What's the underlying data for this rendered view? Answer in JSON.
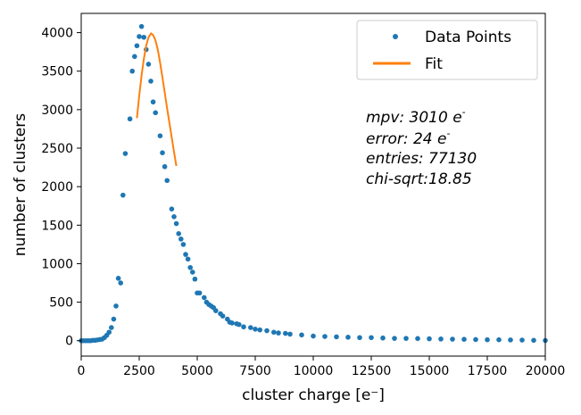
{
  "chart_data": {
    "type": "scatter",
    "title": "",
    "xlabel": "cluster charge [e⁻]",
    "ylabel": "number of clusters",
    "xlim": [
      0,
      20000
    ],
    "ylim": [
      -200,
      4250
    ],
    "x_ticks": [
      0,
      2500,
      5000,
      7500,
      10000,
      12500,
      15000,
      17500,
      20000
    ],
    "y_ticks": [
      0,
      500,
      1000,
      1500,
      2000,
      2500,
      3000,
      3500,
      4000
    ],
    "grid": false,
    "legend_position": "top-right",
    "series": [
      {
        "name": "Data Points",
        "kind": "scatter",
        "color": "#1f77b4",
        "points": [
          [
            0,
            0
          ],
          [
            100,
            0
          ],
          [
            200,
            0
          ],
          [
            300,
            0
          ],
          [
            400,
            0
          ],
          [
            500,
            5
          ],
          [
            600,
            5
          ],
          [
            700,
            10
          ],
          [
            800,
            15
          ],
          [
            900,
            20
          ],
          [
            1000,
            40
          ],
          [
            1100,
            70
          ],
          [
            1200,
            110
          ],
          [
            1300,
            170
          ],
          [
            1400,
            280
          ],
          [
            1500,
            450
          ],
          [
            1600,
            810
          ],
          [
            1700,
            750
          ],
          [
            1800,
            1890
          ],
          [
            1900,
            2430
          ],
          [
            2100,
            2880
          ],
          [
            2200,
            3500
          ],
          [
            2300,
            3690
          ],
          [
            2400,
            3830
          ],
          [
            2500,
            3950
          ],
          [
            2600,
            4080
          ],
          [
            2700,
            3940
          ],
          [
            2800,
            3780
          ],
          [
            2900,
            3590
          ],
          [
            3000,
            3370
          ],
          [
            3100,
            3100
          ],
          [
            3200,
            2960
          ],
          [
            3400,
            2660
          ],
          [
            3500,
            2440
          ],
          [
            3600,
            2260
          ],
          [
            3700,
            2080
          ],
          [
            3900,
            1710
          ],
          [
            4000,
            1610
          ],
          [
            4100,
            1520
          ],
          [
            4200,
            1390
          ],
          [
            4300,
            1320
          ],
          [
            4400,
            1250
          ],
          [
            4500,
            1120
          ],
          [
            4600,
            1060
          ],
          [
            4700,
            950
          ],
          [
            4800,
            890
          ],
          [
            4900,
            800
          ],
          [
            5000,
            620
          ],
          [
            5100,
            620
          ],
          [
            5300,
            560
          ],
          [
            5400,
            500
          ],
          [
            5500,
            470
          ],
          [
            5600,
            450
          ],
          [
            5700,
            430
          ],
          [
            5800,
            390
          ],
          [
            6000,
            350
          ],
          [
            6100,
            320
          ],
          [
            6300,
            280
          ],
          [
            6400,
            240
          ],
          [
            6500,
            230
          ],
          [
            6700,
            220
          ],
          [
            6800,
            210
          ],
          [
            7000,
            180
          ],
          [
            7300,
            170
          ],
          [
            7500,
            150
          ],
          [
            7700,
            140
          ],
          [
            8000,
            130
          ],
          [
            8300,
            110
          ],
          [
            8500,
            100
          ],
          [
            8800,
            95
          ],
          [
            9000,
            85
          ],
          [
            9500,
            75
          ],
          [
            10000,
            60
          ],
          [
            10500,
            55
          ],
          [
            11000,
            50
          ],
          [
            11500,
            45
          ],
          [
            12000,
            40
          ],
          [
            12500,
            40
          ],
          [
            13000,
            35
          ],
          [
            13500,
            30
          ],
          [
            14000,
            30
          ],
          [
            14500,
            28
          ],
          [
            15000,
            25
          ],
          [
            15500,
            22
          ],
          [
            16000,
            20
          ],
          [
            16500,
            18
          ],
          [
            17000,
            15
          ],
          [
            17500,
            12
          ],
          [
            18000,
            12
          ],
          [
            18500,
            10
          ],
          [
            19000,
            8
          ],
          [
            19500,
            5
          ],
          [
            20000,
            2
          ]
        ]
      },
      {
        "name": "Fit",
        "kind": "line",
        "color": "#ff7f0e",
        "points": [
          [
            2400,
            2890
          ],
          [
            2500,
            3180
          ],
          [
            2600,
            3440
          ],
          [
            2700,
            3660
          ],
          [
            2800,
            3830
          ],
          [
            2900,
            3940
          ],
          [
            3010,
            3990
          ],
          [
            3100,
            3970
          ],
          [
            3200,
            3900
          ],
          [
            3300,
            3780
          ],
          [
            3400,
            3610
          ],
          [
            3500,
            3420
          ],
          [
            3600,
            3220
          ],
          [
            3700,
            3020
          ],
          [
            3800,
            2830
          ],
          [
            3900,
            2640
          ],
          [
            4000,
            2450
          ],
          [
            4100,
            2270
          ]
        ]
      }
    ],
    "annotations": [
      {
        "text": "mpv: 3010 e",
        "sup": "-"
      },
      {
        "text": "error: 24 e",
        "sup": "-"
      },
      {
        "text": "entries: 77130",
        "sup": ""
      },
      {
        "text": "chi-sqrt:18.85",
        "sup": ""
      }
    ]
  }
}
